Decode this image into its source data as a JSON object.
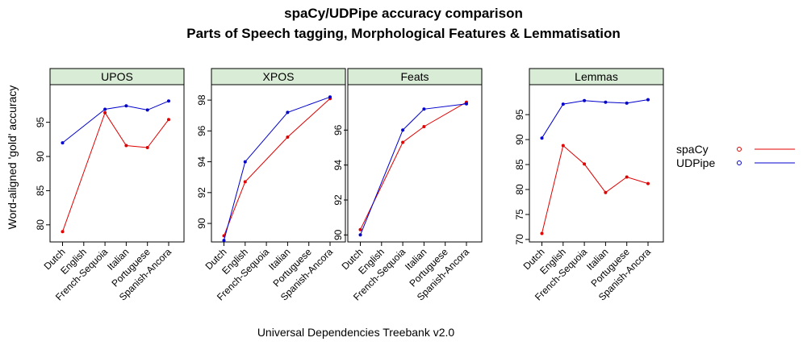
{
  "chart_data": {
    "type": "line",
    "title": "spaCy/UDPipe accuracy comparison",
    "subtitle": "Parts of Speech tagging, Morphological Features & Lemmatisation",
    "xlabel": "Universal Dependencies Treebank v2.0",
    "ylabel": "Word-aligned 'gold' accuracy",
    "categories": [
      "Dutch",
      "English",
      "French-Sequoia",
      "Italian",
      "Portuguese",
      "Spanish-Ancora"
    ],
    "legend": {
      "position": "right",
      "entries": [
        "spaCy",
        "UDPipe"
      ]
    },
    "colors": {
      "spaCy": "#e00000",
      "UDPipe": "#0000cc",
      "strip": "#d9ecd6"
    },
    "panels": [
      {
        "name": "UPOS",
        "ylim": [
          77.5,
          100.5
        ],
        "yticks": [
          80,
          85,
          90,
          95
        ],
        "series": [
          {
            "name": "spaCy",
            "values": [
              79.0,
              96.4,
              91.6,
              91.3,
              95.4
            ]
          },
          {
            "name": "UDPipe",
            "values": [
              92.0,
              96.9,
              97.4,
              96.8,
              98.1
            ]
          }
        ]
      },
      {
        "name": "XPOS",
        "ylim": [
          88.8,
          99.0
        ],
        "yticks": [
          90,
          92,
          94,
          96,
          98
        ],
        "series": [
          {
            "name": "spaCy",
            "values": [
              89.2,
              92.7,
              95.6,
              98.1
            ]
          },
          {
            "name": "UDPipe",
            "values": [
              88.9,
              94.0,
              97.2,
              98.2
            ]
          }
        ]
      },
      {
        "name": "Feats",
        "ylim": [
          89.6,
          98.6
        ],
        "yticks": [
          90,
          92,
          94,
          96
        ],
        "series": [
          {
            "name": "spaCy",
            "values": [
              90.3,
              95.3,
              96.2,
              97.6
            ]
          },
          {
            "name": "UDPipe",
            "values": [
              90.0,
              96.0,
              97.2,
              97.5
            ]
          }
        ]
      },
      {
        "name": "Lemmas",
        "ylim": [
          69.5,
          101.0
        ],
        "yticks": [
          70,
          75,
          80,
          85,
          90,
          95
        ],
        "series": [
          {
            "name": "spaCy",
            "values": [
              71.2,
              88.8,
              85.1,
              79.4,
              82.5,
              81.2
            ]
          },
          {
            "name": "UDPipe",
            "values": [
              90.3,
              97.1,
              97.8,
              97.5,
              97.3,
              98.0
            ]
          }
        ]
      }
    ],
    "panel_category_index": [
      [
        0,
        2,
        3,
        4,
        5
      ],
      [
        0,
        1,
        3,
        5
      ],
      [
        0,
        2,
        3,
        5
      ],
      [
        0,
        1,
        2,
        3,
        4,
        5
      ]
    ]
  }
}
